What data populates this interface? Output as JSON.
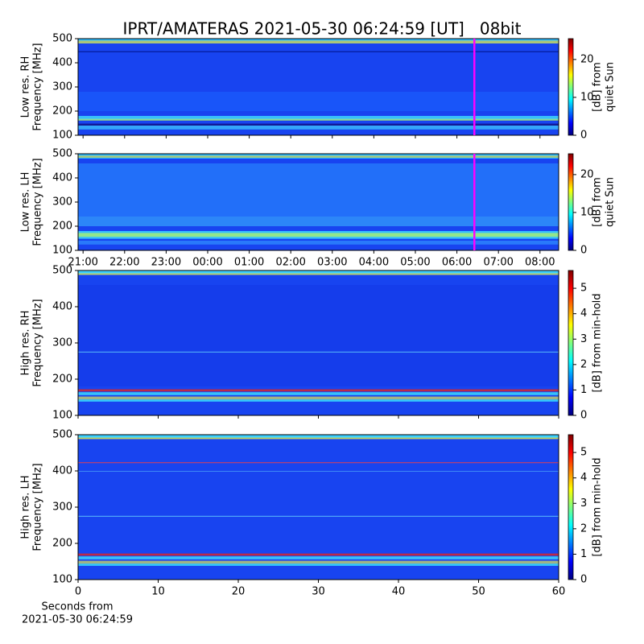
{
  "title": "IPRT/AMATERAS 2021-05-30 06:24:59 [UT]   08bit",
  "chart_data": [
    {
      "type": "heatmap",
      "colormap": "jet",
      "ylabel": [
        "Low res. RH",
        "Frequency [MHz]"
      ],
      "ylim": [
        100,
        500
      ],
      "yticks": [
        100,
        200,
        300,
        400,
        500
      ],
      "xlim": [
        20.88,
        32.45
      ],
      "xticks": [
        21,
        22,
        23,
        24,
        25,
        26,
        27,
        28,
        29,
        30,
        31,
        32
      ],
      "xtick_labels": false,
      "vline": {
        "x": 30.42,
        "color": "#ff00ff"
      },
      "colorbar_label": [
        "[dB] from",
        "quiet Sun"
      ],
      "clim": [
        0,
        25.5
      ],
      "cticks": [
        0,
        10,
        20
      ]
    },
    {
      "type": "heatmap",
      "colormap": "jet",
      "ylabel": [
        "Low res. LH",
        "Frequency [MHz]"
      ],
      "ylim": [
        100,
        500
      ],
      "yticks": [
        100,
        200,
        300,
        400,
        500
      ],
      "xlim": [
        20.88,
        32.45
      ],
      "xticks": [
        {
          "value": 21,
          "label": "21:00"
        },
        {
          "value": 22,
          "label": "22:00"
        },
        {
          "value": 23,
          "label": "23:00"
        },
        {
          "value": 24,
          "label": "00:00"
        },
        {
          "value": 25,
          "label": "01:00"
        },
        {
          "value": 26,
          "label": "02:00"
        },
        {
          "value": 27,
          "label": "03:00"
        },
        {
          "value": 28,
          "label": "04:00"
        },
        {
          "value": 29,
          "label": "05:00"
        },
        {
          "value": 30,
          "label": "06:00"
        },
        {
          "value": 31,
          "label": "07:00"
        },
        {
          "value": 32,
          "label": "08:00"
        }
      ],
      "vline": {
        "x": 30.42,
        "color": "#ff00ff"
      },
      "colorbar_label": [
        "[dB] from",
        "quiet Sun"
      ],
      "clim": [
        0,
        25.5
      ],
      "cticks": [
        0,
        10,
        20
      ]
    },
    {
      "type": "heatmap",
      "colormap": "jet",
      "ylabel": [
        "High res. RH",
        "Frequency [MHz]"
      ],
      "ylim": [
        100,
        500
      ],
      "yticks": [
        100,
        200,
        300,
        400,
        500
      ],
      "xlim": [
        0,
        60
      ],
      "xticks": [
        0,
        10,
        20,
        30,
        40,
        50,
        60
      ],
      "xtick_labels": false,
      "colorbar_label": [
        "[dB] from min-hold"
      ],
      "clim": [
        0,
        5.7
      ],
      "cticks": [
        0,
        1,
        2,
        3,
        4,
        5
      ]
    },
    {
      "type": "heatmap",
      "colormap": "jet",
      "ylabel": [
        "High res. LH",
        "Frequency [MHz]"
      ],
      "ylim": [
        100,
        500
      ],
      "yticks": [
        100,
        200,
        300,
        400,
        500
      ],
      "xlim": [
        0,
        60
      ],
      "xticks": [
        0,
        10,
        20,
        30,
        40,
        50,
        60
      ],
      "xlabel": [
        "Seconds from",
        "2021-05-30 06:24:59"
      ],
      "colorbar_label": [
        "[dB] from min-hold"
      ],
      "clim": [
        0,
        5.7
      ],
      "cticks": [
        0,
        1,
        2,
        3,
        4,
        5
      ]
    }
  ]
}
